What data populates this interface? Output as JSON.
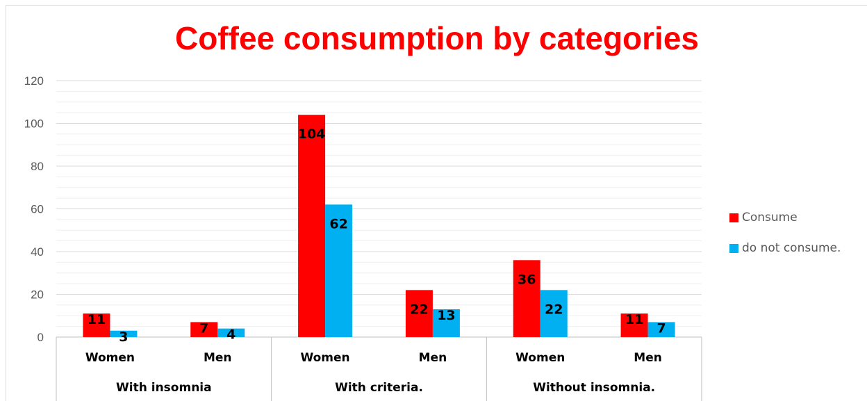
{
  "chart_data": {
    "type": "bar",
    "title": "Coffee consumption by categories",
    "groups": [
      {
        "label": "With insomnia",
        "categories": [
          "Women",
          "Men"
        ]
      },
      {
        "label": "With criteria.",
        "categories": [
          "Women",
          "Men"
        ]
      },
      {
        "label": "Without insomnia.",
        "categories": [
          "Women",
          "Men"
        ]
      }
    ],
    "categories": [
      "Women",
      "Men",
      "Women",
      "Men",
      "Women",
      "Men"
    ],
    "series": [
      {
        "name": "Consume",
        "color": "#ff0000",
        "values": [
          11,
          7,
          104,
          22,
          36,
          11
        ]
      },
      {
        "name": "do not consume.",
        "color": "#00b0f0",
        "values": [
          3,
          4,
          62,
          13,
          22,
          7
        ]
      }
    ],
    "ylim": [
      0,
      120
    ],
    "yticks": [
      0,
      20,
      40,
      60,
      80,
      100,
      120
    ],
    "grid": true,
    "legend_position": "right"
  }
}
